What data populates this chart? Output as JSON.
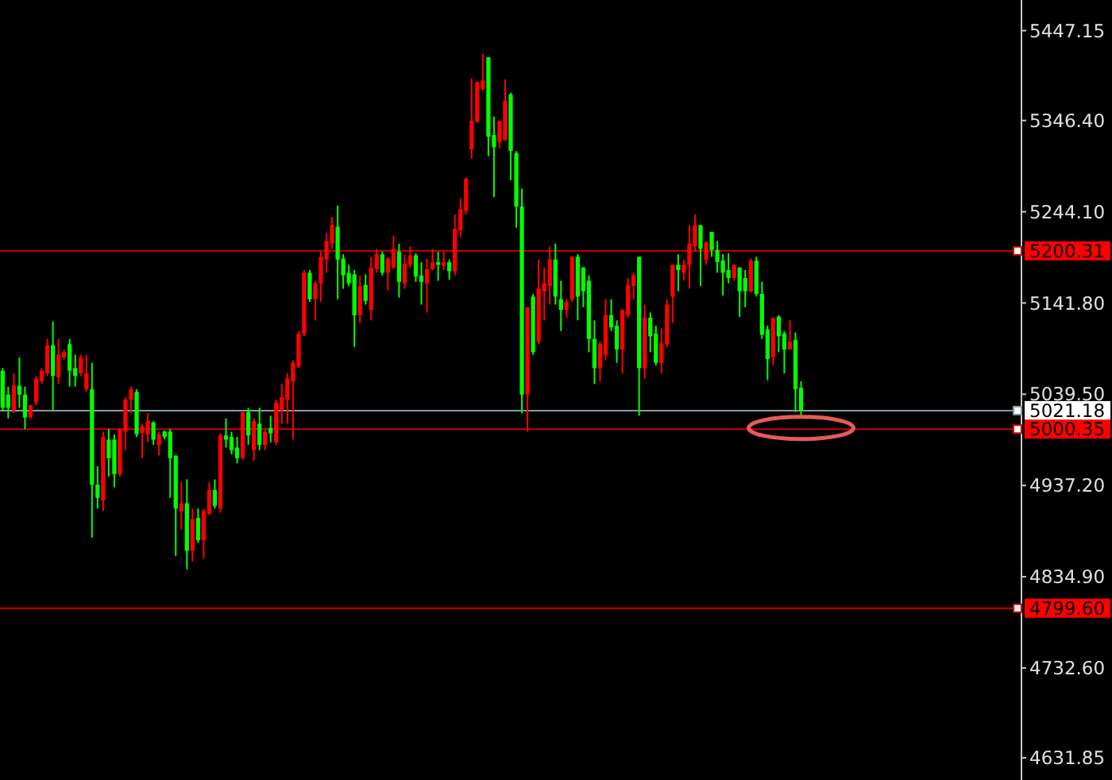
{
  "chart_data": {
    "type": "candlestick",
    "categories": [
      null,
      null,
      null,
      null,
      null,
      null,
      null,
      null,
      null,
      null,
      null,
      null,
      null,
      null,
      null,
      null,
      null,
      null,
      null,
      null,
      null,
      null,
      null,
      null,
      null,
      null,
      null,
      null,
      null,
      null,
      null,
      null,
      null,
      null,
      null,
      null,
      null,
      null,
      null,
      null,
      null,
      null,
      null,
      null,
      null,
      null,
      null,
      null,
      null,
      null,
      null,
      null,
      null,
      null,
      null,
      null,
      null,
      null,
      null,
      null,
      null,
      null,
      null,
      null,
      null,
      null,
      null,
      null,
      null,
      null,
      null,
      null,
      null,
      null,
      null,
      null,
      null,
      null,
      null,
      null,
      null,
      null,
      null,
      null,
      null,
      null,
      null,
      null,
      null,
      null,
      null,
      null,
      null,
      null,
      null,
      null,
      null,
      null,
      null,
      null,
      null,
      null,
      null,
      null,
      null,
      null,
      null,
      null,
      null,
      null,
      null,
      null,
      null,
      null,
      null,
      null,
      null,
      null,
      null,
      null,
      null,
      null,
      null,
      null,
      null,
      null,
      null,
      null,
      null,
      null,
      null,
      null,
      null,
      null,
      null,
      null,
      null,
      null,
      null,
      null,
      null,
      null,
      null,
      null,
      null,
      null,
      null,
      null,
      null,
      null,
      null,
      null,
      null,
      null,
      null,
      null,
      null,
      null,
      null,
      null,
      null,
      null,
      null,
      null,
      null,
      null,
      null,
      null,
      null,
      null,
      null,
      null,
      null,
      null,
      null,
      null,
      null,
      null,
      null,
      null,
      null,
      null,
      null
    ],
    "ohlc": [
      [
        5065.9,
        5068.8,
        5021.3,
        5024.3
      ],
      [
        5039.1,
        5048.0,
        5012.4,
        5024.3
      ],
      [
        5021.3,
        5062.9,
        5018.3,
        5049.2
      ],
      [
        5049.2,
        5080.7,
        5024.3,
        5039.1
      ],
      [
        5039.1,
        5048.0,
        5000.5,
        5013.6
      ],
      [
        5013.6,
        5027.3,
        5012.4,
        5027.3
      ],
      [
        5030.2,
        5059.9,
        5027.3,
        5056.9
      ],
      [
        5054.0,
        5068.8,
        5051.0,
        5065.9
      ],
      [
        5062.9,
        5101.5,
        5059.9,
        5094.4
      ],
      [
        5094.4,
        5121.1,
        5021.3,
        5059.9
      ],
      [
        5058.7,
        5101.5,
        5051.0,
        5083.7
      ],
      [
        5080.7,
        5089.6,
        5077.7,
        5086.7
      ],
      [
        5095.6,
        5101.5,
        5048.0,
        5065.9
      ],
      [
        5068.8,
        5083.7,
        5048.0,
        5059.9
      ],
      [
        5062.9,
        5083.7,
        5059.9,
        5080.7
      ],
      [
        5045.1,
        5083.7,
        5042.1,
        5062.9
      ],
      [
        5045.1,
        5074.8,
        4878.8,
        4938.2
      ],
      [
        4938.2,
        4958.9,
        4911.4,
        4923.3
      ],
      [
        4920.3,
        4997.6,
        4908.5,
        4991.6
      ],
      [
        4988.6,
        5000.5,
        4947.1,
        4967.8
      ],
      [
        4988.6,
        4994.6,
        4935.2,
        4950.0
      ],
      [
        4950.0,
        5000.5,
        4947.1,
        5000.5
      ],
      [
        4997.6,
        5036.2,
        4976.8,
        5033.2
      ],
      [
        5033.2,
        5048.0,
        5018.3,
        5045.1
      ],
      [
        5042.1,
        5045.1,
        4991.6,
        4994.6
      ],
      [
        4995.8,
        5006.5,
        4967.8,
        5003.5
      ],
      [
        4994.6,
        5018.3,
        4985.7,
        5009.4
      ],
      [
        5007.7,
        5009.4,
        4982.7,
        4988.6
      ],
      [
        4982.7,
        4997.6,
        4970.8,
        4994.6
      ],
      [
        4997.6,
        4999.0,
        4989.0,
        4991.6
      ],
      [
        4997.6,
        5000.5,
        4923.3,
        4967.8
      ],
      [
        4970.8,
        4970.8,
        4858.0,
        4911.4
      ],
      [
        4908.4,
        4941.1,
        4887.6,
        4917.3
      ],
      [
        4917.3,
        4944.1,
        4843.1,
        4863.9
      ],
      [
        4863.9,
        4911.4,
        4852.0,
        4899.5
      ],
      [
        4900.7,
        4911.4,
        4872.8,
        4875.8
      ],
      [
        4875.8,
        4911.4,
        4855.0,
        4908.4
      ],
      [
        4905.5,
        4941.1,
        4904.3,
        4932.2
      ],
      [
        4932.2,
        4944.1,
        4911.4,
        4914.4
      ],
      [
        4911.4,
        4995.7,
        4906.6,
        4993.4
      ],
      [
        4993.4,
        5012.4,
        4979.7,
        4988.6
      ],
      [
        4991.6,
        4997.5,
        4972.0,
        4976.7
      ],
      [
        4979.7,
        4991.6,
        4961.9,
        4967.8
      ],
      [
        4967.8,
        5019.5,
        4966.1,
        5019.5
      ],
      [
        5019.5,
        5024.3,
        4982.7,
        4993.4
      ],
      [
        4976.7,
        5012.4,
        4964.9,
        5009.4
      ],
      [
        5006.4,
        5024.3,
        4976.7,
        4982.7
      ],
      [
        4982.7,
        5000.5,
        4976.7,
        4997.5
      ],
      [
        5001.7,
        5015.4,
        4985.6,
        4995.7
      ],
      [
        4985.6,
        5033.2,
        4982.7,
        5030.2
      ],
      [
        5021.3,
        5051.0,
        5006.4,
        5036.1
      ],
      [
        5033.2,
        5062.9,
        5006.4,
        5056.9
      ],
      [
        5054.0,
        5077.7,
        4988.6,
        5074.8
      ],
      [
        5070.6,
        5110.4,
        5068.8,
        5107.4
      ],
      [
        5107.4,
        5178.7,
        5104.5,
        5175.7
      ],
      [
        5175.7,
        5178.7,
        5143.1,
        5146.0
      ],
      [
        5146.0,
        5166.8,
        5122.3,
        5163.9
      ],
      [
        5163.9,
        5199.5,
        5143.1,
        5193.6
      ],
      [
        5190.6,
        5220.3,
        5175.7,
        5211.4
      ],
      [
        5208.4,
        5238.1,
        5202.5,
        5229.2
      ],
      [
        5227.3,
        5251.1,
        5146.0,
        5190.5
      ],
      [
        5191.7,
        5196.4,
        5157.8,
        5172.7
      ],
      [
        5175.7,
        5184.6,
        5160.8,
        5163.8
      ],
      [
        5173.9,
        5178.6,
        5092.5,
        5128.1
      ],
      [
        5128.1,
        5172.7,
        5119.2,
        5160.8
      ],
      [
        5162.0,
        5173.9,
        5140.0,
        5144.2
      ],
      [
        5134.1,
        5193.5,
        5122.2,
        5181.6
      ],
      [
        5179.8,
        5202.4,
        5175.7,
        5196.4
      ],
      [
        5196.4,
        5199.4,
        5172.7,
        5175.7
      ],
      [
        5175.7,
        5193.5,
        5156.0,
        5191.7
      ],
      [
        5181.6,
        5217.2,
        5179.8,
        5202.4
      ],
      [
        5199.4,
        5208.3,
        5147.7,
        5165.5
      ],
      [
        5163.8,
        5196.4,
        5157.8,
        5185.8
      ],
      [
        5184.6,
        5205.4,
        5181.6,
        5195.2
      ],
      [
        5195.2,
        5197.6,
        5165.5,
        5171.5
      ],
      [
        5172.7,
        5187.5,
        5140.0,
        5165.5
      ],
      [
        5163.8,
        5191.7,
        5131.1,
        5179.8
      ],
      [
        5179.8,
        5202.4,
        5178.6,
        5187.5
      ],
      [
        5187.5,
        5199.4,
        5166.7,
        5184.6
      ],
      [
        5183.4,
        5199.4,
        5178.6,
        5187.5
      ],
      [
        5187.5,
        5190.5,
        5167.9,
        5177.4
      ],
      [
        5177.4,
        5241.0,
        5172.7,
        5224.9
      ],
      [
        5223.1,
        5258.8,
        5215.4,
        5246.9
      ],
      [
        5245.2,
        5282.6,
        5241.0,
        5280.8
      ],
      [
        5314.1,
        5393.6,
        5303.4,
        5346.1
      ],
      [
        5344.9,
        5389.5,
        5343.7,
        5389.5
      ],
      [
        5381.8,
        5421.0,
        5379.4,
        5391.3
      ],
      [
        5417.4,
        5417.4,
        5306.3,
        5328.3
      ],
      [
        5330.1,
        5350.9,
        5260.6,
        5316.4
      ],
      [
        5322.4,
        5346.1,
        5315.2,
        5346.1
      ],
      [
        5324.2,
        5392.5,
        5324.2,
        5368.7
      ],
      [
        5375.8,
        5377.6,
        5279.6,
        5312.3
      ],
      [
        5310.0,
        5312.0,
        5226.2,
        5250.0
      ],
      [
        5250.0,
        5270.0,
        5018.3,
        5039.1
      ],
      [
        5039.1,
        5137.1,
        4997.5,
        5137.1
      ],
      [
        5149.0,
        5152.0,
        5083.7,
        5086.6
      ],
      [
        5098.5,
        5190.6,
        5095.6,
        5157.9
      ],
      [
        5155.0,
        5181.7,
        5122.3,
        5163.9
      ],
      [
        5160.9,
        5205.4,
        5140.1,
        5190.6
      ],
      [
        5190.6,
        5208.4,
        5140.1,
        5149.0
      ],
      [
        5146.0,
        5166.8,
        5110.4,
        5134.1
      ],
      [
        5134.1,
        5146.0,
        5125.2,
        5143.1
      ],
      [
        5146.0,
        5193.6,
        5143.1,
        5193.6
      ],
      [
        5193.6,
        5196.5,
        5122.3,
        5149.0
      ],
      [
        5181.7,
        5181.7,
        5137.1,
        5155.0
      ],
      [
        5166.8,
        5172.8,
        5086.6,
        5101.5
      ],
      [
        5101.5,
        5122.3,
        5051.0,
        5068.8
      ],
      [
        5068.8,
        5098.5,
        5054.0,
        5095.6
      ],
      [
        5083.7,
        5146.0,
        5077.7,
        5128.2
      ],
      [
        5128.2,
        5146.0,
        5110.4,
        5114.6
      ],
      [
        5116.3,
        5122.3,
        5074.7,
        5089.6
      ],
      [
        5089.6,
        5134.1,
        5062.9,
        5134.1
      ],
      [
        5128.2,
        5169.8,
        5125.2,
        5162.1
      ],
      [
        5160.9,
        5175.7,
        5146.0,
        5172.8
      ],
      [
        5193.6,
        5193.6,
        5015.4,
        5068.8
      ],
      [
        5068.8,
        5140.1,
        5057.0,
        5125.2
      ],
      [
        5125.2,
        5131.2,
        5086.6,
        5104.5
      ],
      [
        5107.4,
        5116.3,
        5071.8,
        5074.7
      ],
      [
        5074.7,
        5113.4,
        5062.9,
        5096.7
      ],
      [
        5095.6,
        5146.0,
        5092.0,
        5140.1
      ],
      [
        5149.0,
        5184.6,
        5119.3,
        5184.6
      ],
      [
        5184.6,
        5196.5,
        5154.9,
        5178.7
      ],
      [
        5175.7,
        5190.6,
        5166.8,
        5184.6
      ],
      [
        5184.6,
        5229.2,
        5157.9,
        5208.4
      ],
      [
        5205.4,
        5241.1,
        5199.5,
        5229.2
      ],
      [
        5229.2,
        5229.2,
        5160.9,
        5202.5
      ],
      [
        5190.6,
        5211.4,
        5184.6,
        5209.6
      ],
      [
        5221.5,
        5221.5,
        5193.6,
        5201.3
      ],
      [
        5201.3,
        5211.4,
        5175.7,
        5187.6
      ],
      [
        5189.4,
        5196.5,
        5150.2,
        5175.7
      ],
      [
        5178.7,
        5197.7,
        5163.9,
        5169.8
      ],
      [
        5169.8,
        5184.6,
        5166.8,
        5184.6
      ],
      [
        5181.7,
        5181.7,
        5126.4,
        5154.9
      ],
      [
        5169.8,
        5178.7,
        5137.1,
        5154.9
      ],
      [
        5154.9,
        5191.8,
        5153.8,
        5189.4
      ],
      [
        5189.4,
        5193.6,
        5149.0,
        5152.0
      ],
      [
        5152.0,
        5165.6,
        5101.5,
        5106.2
      ],
      [
        5112.2,
        5116.3,
        5055.1,
        5078.9
      ],
      [
        5080.7,
        5125.2,
        5071.8,
        5125.2
      ],
      [
        5126.4,
        5128.2,
        5086.6,
        5104.5
      ],
      [
        5107.4,
        5110.4,
        5062.9,
        5089.6
      ],
      [
        5089.6,
        5122.3,
        5089.6,
        5098.5
      ],
      [
        5100.3,
        5108.6,
        5019.5,
        5045.1
      ],
      [
        5046.8,
        5054.0,
        5012.4,
        5021.18
      ],
      null,
      null,
      null,
      null,
      null,
      null,
      null,
      null,
      null,
      null,
      null,
      null,
      null,
      null,
      null,
      null,
      null,
      null,
      null,
      null,
      null,
      null,
      null,
      null,
      null,
      null,
      null,
      null,
      null,
      null,
      null,
      null,
      null,
      null,
      null,
      null,
      null,
      null,
      null
    ],
    "colors": [
      "#00ff00",
      "#00ff00",
      "#ff0000",
      "#00ff00",
      "#00ff00",
      "#ff0000",
      "#ff0000",
      "#ff0000",
      "#ff0000",
      "#00ff00",
      "#ff0000",
      "#ff0000",
      "#00ff00",
      "#00ff00",
      "#ff0000",
      "#ff0000",
      "#00ff00",
      "#00ff00",
      "#ff0000",
      "#00ff00",
      "#00ff00",
      "#ff0000",
      "#ff0000",
      "#ff0000",
      "#00ff00",
      "#ff0000",
      "#ff0000",
      "#00ff00",
      "#ff0000",
      "#00ff00",
      "#00ff00",
      "#00ff00",
      "#ff0000",
      "#00ff00",
      "#ff0000",
      "#00ff00",
      "#ff0000",
      "#ff0000",
      "#00ff00",
      "#ff0000",
      "#00ff00",
      "#00ff00",
      "#00ff00",
      "#ff0000",
      "#00ff00",
      "#ff0000",
      "#00ff00",
      "#ff0000",
      "#00ff00",
      "#ff0000",
      "#ff0000",
      "#ff0000",
      "#ff0000",
      "#ff0000",
      "#ff0000",
      "#00ff00",
      "#ff0000",
      "#ff0000",
      "#ff0000",
      "#ff0000",
      "#00ff00",
      "#00ff00",
      "#00ff00",
      "#00ff00",
      "#ff0000",
      "#00ff00",
      "#ff0000",
      "#ff0000",
      "#00ff00",
      "#ff0000",
      "#ff0000",
      "#00ff00",
      "#ff0000",
      "#ff0000",
      "#00ff00",
      "#00ff00",
      "#ff0000",
      "#ff0000",
      "#00ff00",
      "#ff0000",
      "#00ff00",
      "#ff0000",
      "#ff0000",
      "#ff0000",
      "#ff0000",
      "#ff0000",
      "#ff0000",
      "#00ff00",
      "#00ff00",
      "#ff0000",
      "#ff0000",
      "#00ff00",
      "#00ff00",
      "#00ff00",
      "#ff0000",
      "#00ff00",
      "#ff0000",
      "#ff0000",
      "#ff0000",
      "#00ff00",
      "#00ff00",
      "#ff0000",
      "#ff0000",
      "#00ff00",
      "#00ff00",
      "#00ff00",
      "#00ff00",
      "#ff0000",
      "#ff0000",
      "#00ff00",
      "#00ff00",
      "#ff0000",
      "#ff0000",
      "#ff0000",
      "#00ff00",
      "#ff0000",
      "#00ff00",
      "#00ff00",
      "#ff0000",
      "#ff0000",
      "#ff0000",
      "#00ff00",
      "#ff0000",
      "#ff0000",
      "#ff0000",
      "#00ff00",
      "#ff0000",
      "#00ff00",
      "#00ff00",
      "#00ff00",
      "#00ff00",
      "#ff0000",
      "#00ff00",
      "#00ff00",
      "#ff0000",
      "#00ff00",
      "#00ff00",
      "#00ff00",
      "#ff0000",
      "#00ff00",
      "#00ff00",
      "#ff0000",
      "#00ff00",
      "#00ff00",
      null,
      null,
      null,
      null,
      null,
      null,
      null,
      null,
      null,
      null,
      null,
      null,
      null,
      null,
      null,
      null,
      null,
      null,
      null,
      null,
      null,
      null,
      null,
      null,
      null,
      null,
      null,
      null,
      null,
      null,
      null,
      null,
      null,
      null,
      null,
      null,
      null,
      null,
      null
    ],
    "ylim": [
      4607,
      5481.5
    ],
    "yticks": [
      5447.15,
      {
        "value": 5346.4,
        "label": "5346.40"
      },
      {
        "value": 5244.1,
        "label": "5244.10"
      },
      {
        "value": 5141.8,
        "label": "5141.80"
      },
      {
        "value": 5039.5,
        "label": "5039.50"
      },
      {
        "value": 4937.2,
        "label": "4937.20"
      },
      {
        "value": 4834.9,
        "label": "4834.90"
      },
      {
        "value": 4732.6,
        "label": "4732.60"
      },
      4631.85
    ],
    "ref_lines": [
      {
        "axis": "y",
        "value": 5200.31,
        "label": "5200.31",
        "color": "#cc0000"
      },
      {
        "axis": "y",
        "value": 5021.18,
        "label": "5021.18",
        "color": "#8898a8"
      },
      {
        "axis": "y",
        "value": 5000.35,
        "label": "5000.35",
        "color": "#cc0000"
      },
      {
        "axis": "y",
        "value": 4799.6,
        "label": "4799.60",
        "color": "#cc0000"
      }
    ],
    "tick_labels": "y"
  }
}
